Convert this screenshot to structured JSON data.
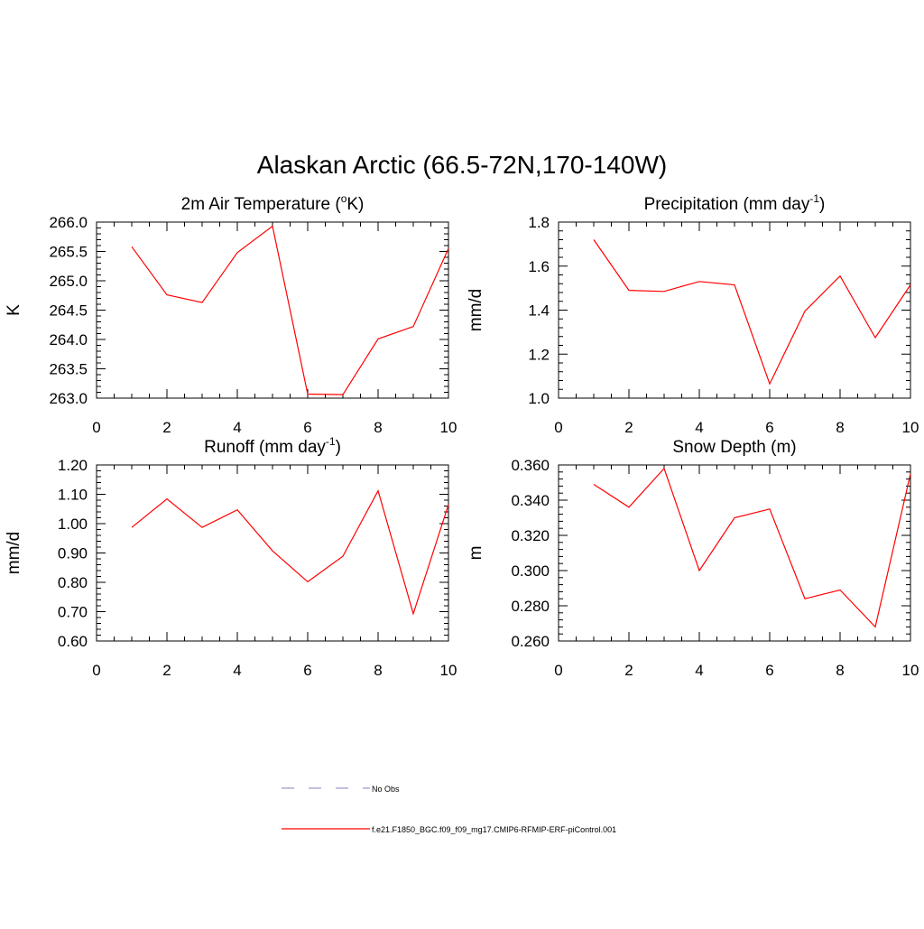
{
  "main_title": "Alaskan Arctic (66.5-72N,170-140W)",
  "colors": {
    "model_line": "#ff0000",
    "obs_line": "#9999cc",
    "axis": "#000000",
    "background": "#ffffff"
  },
  "chart_data": [
    {
      "type": "line",
      "title": "2m Air Temperature",
      "title_main": "2m Air Temperature (",
      "title_sup": "o",
      "title_tail": "K)",
      "ylabel": "K",
      "xlim": [
        0,
        10
      ],
      "ylim": [
        263.0,
        266.0
      ],
      "xticks": [
        0,
        2,
        4,
        6,
        8,
        10
      ],
      "xtick_labels": [
        "0",
        "2",
        "4",
        "6",
        "8",
        "10"
      ],
      "yticks": [
        263.0,
        263.5,
        264.0,
        264.5,
        265.0,
        265.5,
        266.0
      ],
      "ytick_labels": [
        "263.0",
        "263.5",
        "264.0",
        "264.5",
        "265.0",
        "265.5",
        "266.0"
      ],
      "x": [
        1,
        2,
        3,
        4,
        5,
        6,
        7,
        8,
        9,
        10
      ],
      "series": [
        {
          "name": "f.e21.F1850_BGC.f09_f09_mg17.CMIP6-RFMIP-ERF-piControl.001",
          "values": [
            265.58,
            264.76,
            264.63,
            265.48,
            265.93,
            263.07,
            263.06,
            264.01,
            264.22,
            265.55
          ]
        }
      ]
    },
    {
      "type": "line",
      "title": "Precipitation",
      "title_main": "Precipitation (mm day",
      "title_sup": "-1",
      "title_tail": ")",
      "ylabel": "mm/d",
      "xlim": [
        0,
        10
      ],
      "ylim": [
        1.0,
        1.8
      ],
      "xticks": [
        0,
        2,
        4,
        6,
        8,
        10
      ],
      "xtick_labels": [
        "0",
        "2",
        "4",
        "6",
        "8",
        "10"
      ],
      "yticks": [
        1.0,
        1.2,
        1.4,
        1.6,
        1.8
      ],
      "ytick_labels": [
        "1.0",
        "1.2",
        "1.4",
        "1.6",
        "1.8"
      ],
      "x": [
        1,
        2,
        3,
        4,
        5,
        6,
        7,
        8,
        9,
        10
      ],
      "series": [
        {
          "name": "f.e21.F1850_BGC.f09_f09_mg17.CMIP6-RFMIP-ERF-piControl.001",
          "values": [
            1.72,
            1.49,
            1.485,
            1.53,
            1.515,
            1.065,
            1.395,
            1.555,
            1.275,
            1.515
          ]
        }
      ]
    },
    {
      "type": "line",
      "title": "Runoff",
      "title_main": "Runoff (mm day",
      "title_sup": "-1",
      "title_tail": ")",
      "ylabel": "mm/d",
      "xlim": [
        0,
        10
      ],
      "ylim": [
        0.6,
        1.2
      ],
      "xticks": [
        0,
        2,
        4,
        6,
        8,
        10
      ],
      "xtick_labels": [
        "0",
        "2",
        "4",
        "6",
        "8",
        "10"
      ],
      "yticks": [
        0.6,
        0.7,
        0.8,
        0.9,
        1.0,
        1.1,
        1.2
      ],
      "ytick_labels": [
        "0.60",
        "0.70",
        "0.80",
        "0.90",
        "1.00",
        "1.10",
        "1.20"
      ],
      "x": [
        1,
        2,
        3,
        4,
        5,
        6,
        7,
        8,
        9,
        10
      ],
      "series": [
        {
          "name": "f.e21.F1850_BGC.f09_f09_mg17.CMIP6-RFMIP-ERF-piControl.001",
          "values": [
            0.987,
            1.084,
            0.987,
            1.047,
            0.907,
            0.802,
            0.889,
            1.112,
            0.693,
            1.065
          ]
        }
      ]
    },
    {
      "type": "line",
      "title": "Snow Depth (m)",
      "title_main": "Snow Depth (m)",
      "title_sup": "",
      "title_tail": "",
      "ylabel": "m",
      "xlim": [
        0,
        10
      ],
      "ylim": [
        0.26,
        0.36
      ],
      "xticks": [
        0,
        2,
        4,
        6,
        8,
        10
      ],
      "xtick_labels": [
        "0",
        "2",
        "4",
        "6",
        "8",
        "10"
      ],
      "yticks": [
        0.26,
        0.28,
        0.3,
        0.32,
        0.34,
        0.36
      ],
      "ytick_labels": [
        "0.260",
        "0.280",
        "0.300",
        "0.320",
        "0.340",
        "0.360"
      ],
      "x": [
        1,
        2,
        3,
        4,
        5,
        6,
        7,
        8,
        9,
        10
      ],
      "series": [
        {
          "name": "f.e21.F1850_BGC.f09_f09_mg17.CMIP6-RFMIP-ERF-piControl.001",
          "values": [
            0.349,
            0.336,
            0.358,
            0.3,
            0.33,
            0.335,
            0.284,
            0.289,
            0.268,
            0.355
          ]
        }
      ]
    }
  ],
  "legend": {
    "placement": "bottom-center",
    "items": [
      {
        "label": "No Obs",
        "style": "dashed",
        "color": "#9999cc"
      },
      {
        "label": "f.e21.F1850_BGC.f09_f09_mg17.CMIP6-RFMIP-ERF-piControl.001",
        "style": "solid",
        "color": "#ff0000"
      }
    ]
  }
}
